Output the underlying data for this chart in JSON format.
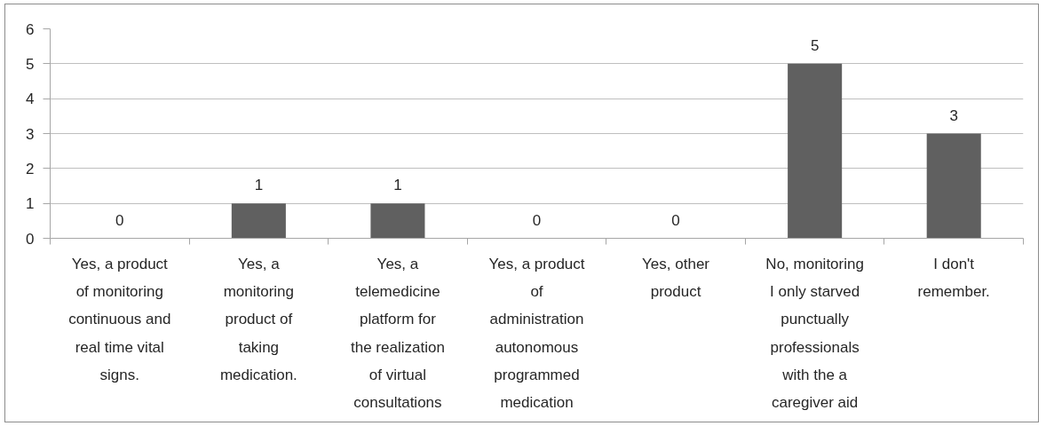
{
  "chart_data": {
    "type": "bar",
    "categories": [
      "Yes, a product of monitoring continuous and real time vital signs.",
      "Yes, a monitoring product of taking medication.",
      "Yes, a telemedicine platform for the realization of virtual consultations",
      "Yes, a product of administration autonomous programmed medication",
      "Yes, other product",
      "No, monitoring I only starved punctually professionals with the a caregiver aid",
      "I don't remember."
    ],
    "values": [
      0,
      1,
      1,
      0,
      0,
      5,
      3
    ],
    "color": "#606060",
    "ylim": [
      0,
      6
    ],
    "yticks": [
      0,
      1,
      2,
      3,
      4,
      5,
      6
    ],
    "grid": "y",
    "data_labels": true
  }
}
